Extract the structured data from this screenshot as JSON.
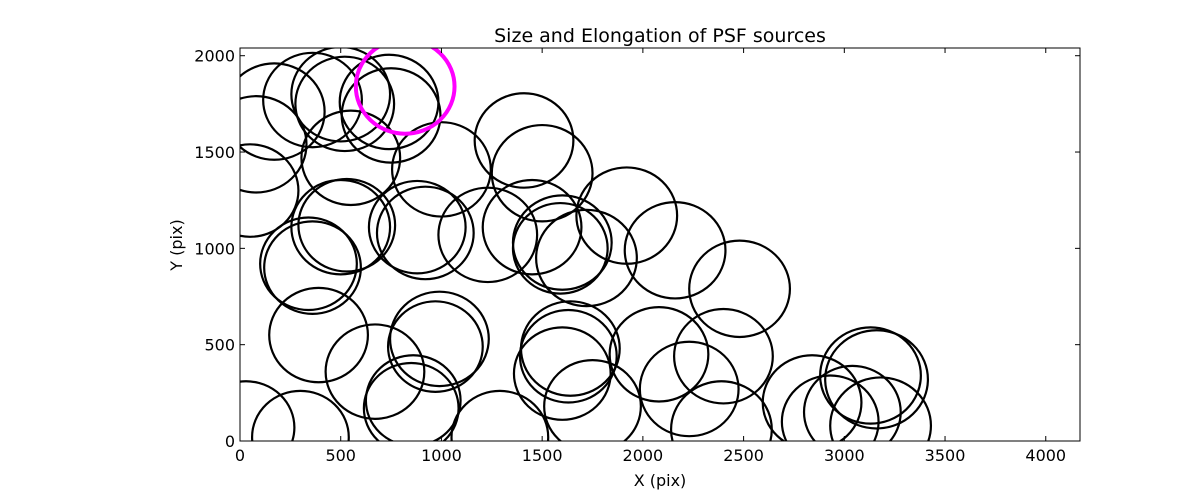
{
  "chart_data": {
    "type": "scatter",
    "title": "Size and Elongation of PSF sources",
    "xlabel": "X (pix)",
    "ylabel": "Y (pix)",
    "xlim": [
      0,
      4170
    ],
    "ylim": [
      0,
      2040
    ],
    "xticks": [
      0,
      500,
      1000,
      1500,
      2000,
      2500,
      3000,
      3500,
      4000
    ],
    "yticks": [
      0,
      500,
      1000,
      1500,
      2000
    ],
    "grid": false,
    "marker_color": "#000000",
    "highlight_color": "#ff00ff",
    "circle_radius_pix": 250,
    "sources": [
      {
        "x": 30,
        "y": 70,
        "r": 240
      },
      {
        "x": 80,
        "y": 1540,
        "r": 250
      },
      {
        "x": 170,
        "y": 1710,
        "r": 250
      },
      {
        "x": 50,
        "y": 1300,
        "r": 240
      },
      {
        "x": 360,
        "y": 900,
        "r": 240
      },
      {
        "x": 340,
        "y": 920,
        "r": 240
      },
      {
        "x": 390,
        "y": 550,
        "r": 245
      },
      {
        "x": 300,
        "y": 20,
        "r": 240
      },
      {
        "x": 360,
        "y": 1770,
        "r": 245
      },
      {
        "x": 500,
        "y": 1800,
        "r": 245
      },
      {
        "x": 520,
        "y": 1750,
        "r": 245
      },
      {
        "x": 550,
        "y": 1470,
        "r": 245
      },
      {
        "x": 500,
        "y": 1110,
        "r": 245
      },
      {
        "x": 530,
        "y": 1120,
        "r": 240
      },
      {
        "x": 670,
        "y": 360,
        "r": 245
      },
      {
        "x": 750,
        "y": 1690,
        "r": 245
      },
      {
        "x": 740,
        "y": 1760,
        "r": 245
      },
      {
        "x": 820,
        "y": 1840,
        "r": 245,
        "highlight": true
      },
      {
        "x": 850,
        "y": 170,
        "r": 235
      },
      {
        "x": 860,
        "y": 210,
        "r": 235
      },
      {
        "x": 880,
        "y": 1110,
        "r": 240
      },
      {
        "x": 920,
        "y": 1080,
        "r": 240
      },
      {
        "x": 1000,
        "y": 1410,
        "r": 245
      },
      {
        "x": 970,
        "y": 490,
        "r": 235
      },
      {
        "x": 990,
        "y": 530,
        "r": 245
      },
      {
        "x": 1230,
        "y": 1070,
        "r": 245
      },
      {
        "x": 1290,
        "y": 20,
        "r": 240
      },
      {
        "x": 1410,
        "y": 1560,
        "r": 245
      },
      {
        "x": 1450,
        "y": 1110,
        "r": 245
      },
      {
        "x": 1500,
        "y": 1390,
        "r": 250
      },
      {
        "x": 1590,
        "y": 1000,
        "r": 235
      },
      {
        "x": 1600,
        "y": 1030,
        "r": 245
      },
      {
        "x": 1630,
        "y": 440,
        "r": 240
      },
      {
        "x": 1640,
        "y": 480,
        "r": 245
      },
      {
        "x": 1600,
        "y": 350,
        "r": 240
      },
      {
        "x": 1720,
        "y": 950,
        "r": 250
      },
      {
        "x": 1750,
        "y": 180,
        "r": 240
      },
      {
        "x": 1920,
        "y": 1170,
        "r": 250
      },
      {
        "x": 2080,
        "y": 450,
        "r": 245
      },
      {
        "x": 2160,
        "y": 990,
        "r": 250
      },
      {
        "x": 2230,
        "y": 270,
        "r": 245
      },
      {
        "x": 2400,
        "y": 440,
        "r": 245
      },
      {
        "x": 2390,
        "y": 60,
        "r": 250
      },
      {
        "x": 2480,
        "y": 790,
        "r": 250
      },
      {
        "x": 2840,
        "y": 200,
        "r": 245
      },
      {
        "x": 2930,
        "y": 100,
        "r": 240
      },
      {
        "x": 3040,
        "y": 150,
        "r": 240
      },
      {
        "x": 3130,
        "y": 340,
        "r": 250
      },
      {
        "x": 3160,
        "y": 320,
        "r": 255
      },
      {
        "x": 3180,
        "y": 80,
        "r": 250
      }
    ]
  }
}
